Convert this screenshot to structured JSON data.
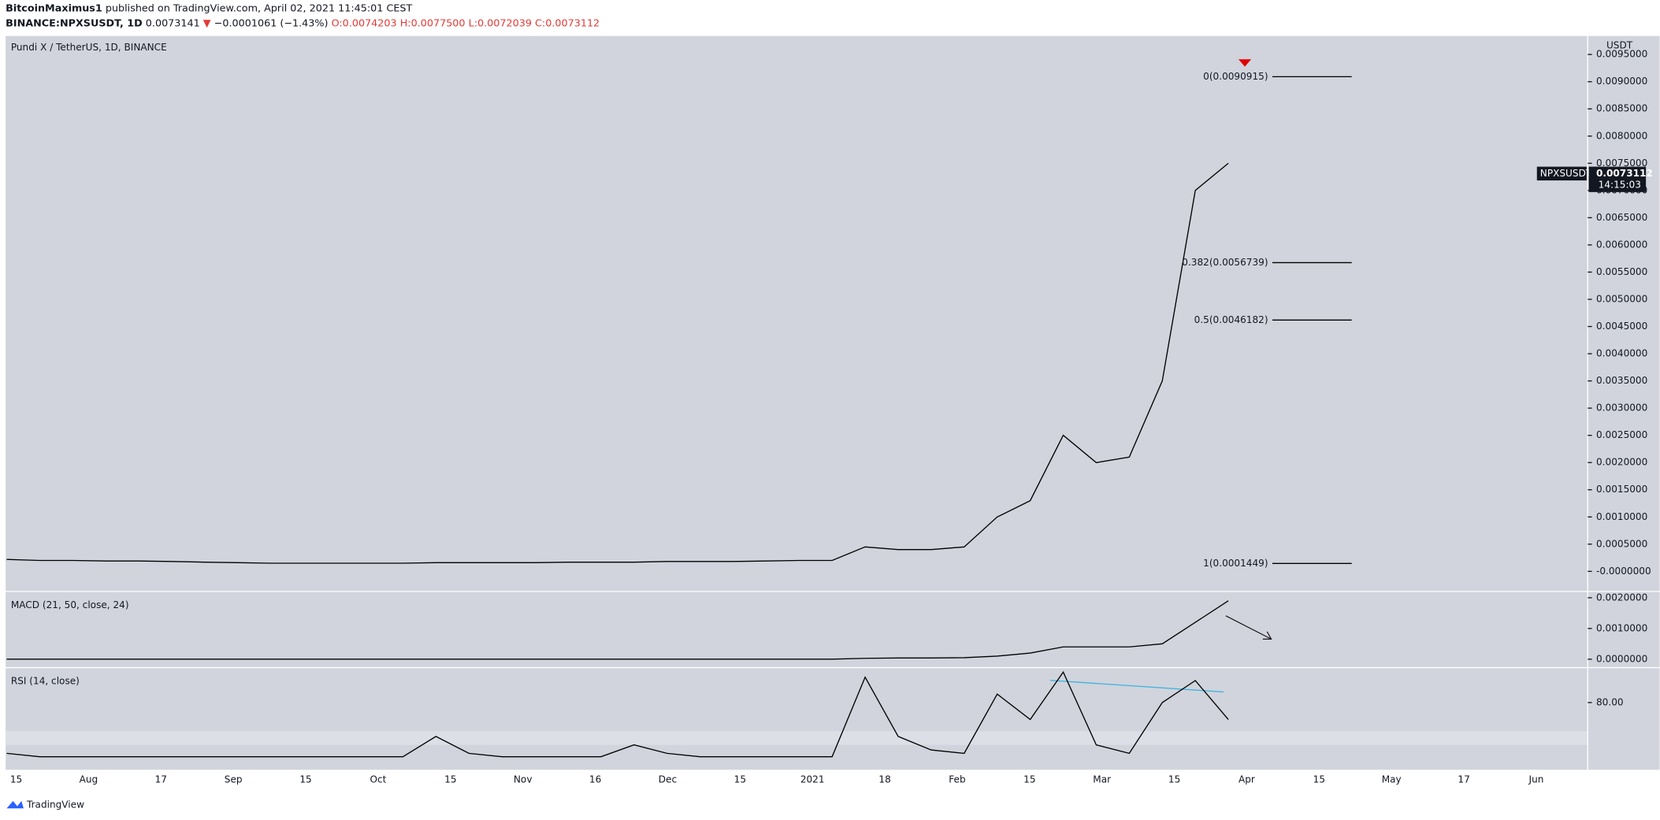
{
  "header": {
    "author": "BitcoinMaximus1",
    "published": "published on TradingView.com, April 02, 2021 11:45:01 CEST",
    "symbol": "BINANCE:NPXSUSDT, 1D",
    "last": "0.0073141",
    "change": "−0.0001061 (−1.43%)",
    "open": "O:0.0074203",
    "high": "H:0.0077500",
    "low": "L:0.0072039",
    "close": "C:0.0073112"
  },
  "footer": "TradingView",
  "chart_data": [
    {
      "type": "line",
      "title": "Pundi X / TetherUS, 1D, BINANCE",
      "axis_unit": "USDT",
      "x": [
        "Jul 13",
        "Jul 20",
        "Jul 27",
        "Aug 3",
        "Aug 10",
        "Aug 17",
        "Aug 24",
        "Aug 31",
        "Sep 7",
        "Sep 14",
        "Sep 21",
        "Sep 28",
        "Oct 5",
        "Oct 12",
        "Oct 19",
        "Oct 26",
        "Nov 2",
        "Nov 9",
        "Nov 16",
        "Nov 23",
        "Nov 30",
        "Dec 7",
        "Dec 14",
        "Dec 21",
        "Dec 28",
        "Jan 4",
        "Jan 11",
        "Jan 18",
        "Jan 25",
        "Feb 1",
        "Feb 8",
        "Feb 15",
        "Feb 22",
        "Mar 1",
        "Mar 8",
        "Mar 15",
        "Mar 22",
        "Mar 29"
      ],
      "series": [
        {
          "name": "NPXSUSDT",
          "color": "#000000",
          "values": [
            0.00022,
            0.0002,
            0.0002,
            0.00019,
            0.00019,
            0.00018,
            0.00017,
            0.00016,
            0.00015,
            0.00015,
            0.00015,
            0.00015,
            0.00015,
            0.00016,
            0.00016,
            0.00016,
            0.00016,
            0.00017,
            0.00017,
            0.00017,
            0.00018,
            0.00018,
            0.00018,
            0.00019,
            0.0002,
            0.0002,
            0.00045,
            0.0004,
            0.0004,
            0.00045,
            0.001,
            0.0013,
            0.0025,
            0.002,
            0.0021,
            0.0035,
            0.007,
            0.0075
          ]
        }
      ],
      "xtick_labels": [
        "15",
        "Aug",
        "17",
        "Sep",
        "15",
        "Oct",
        "15",
        "Nov",
        "16",
        "Dec",
        "15",
        "2021",
        "18",
        "Feb",
        "15",
        "Mar",
        "15",
        "Apr",
        "15",
        "May",
        "17",
        "Jun"
      ],
      "ylim": [
        -0.00035,
        0.00984
      ],
      "yticks": [
        {
          "value": 0,
          "label": "-0.0000000"
        },
        {
          "value": 0.0005,
          "label": "0.0005000"
        },
        {
          "value": 0.001,
          "label": "0.0010000"
        },
        {
          "value": 0.0015,
          "label": "0.0015000"
        },
        {
          "value": 0.002,
          "label": "0.0020000"
        },
        {
          "value": 0.0025,
          "label": "0.0025000"
        },
        {
          "value": 0.003,
          "label": "0.0030000"
        },
        {
          "value": 0.0035,
          "label": "0.0035000"
        },
        {
          "value": 0.004,
          "label": "0.0040000"
        },
        {
          "value": 0.0045,
          "label": "0.0045000"
        },
        {
          "value": 0.005,
          "label": "0.0050000"
        },
        {
          "value": 0.0055,
          "label": "0.0055000"
        },
        {
          "value": 0.006,
          "label": "0.0060000"
        },
        {
          "value": 0.0065,
          "label": "0.0065000"
        },
        {
          "value": 0.007,
          "label": "0.0070000"
        },
        {
          "value": 0.0075,
          "label": "0.0075000"
        },
        {
          "value": 0.008,
          "label": "0.0080000"
        },
        {
          "value": 0.0085,
          "label": "0.0085000"
        },
        {
          "value": 0.009,
          "label": "0.0090000"
        },
        {
          "value": 0.0095,
          "label": "0.0095000"
        }
      ],
      "fib_levels": [
        {
          "value": 0.0090915,
          "label": "0(0.0090915)"
        },
        {
          "value": 0.0056739,
          "label": "0.382(0.0056739)"
        },
        {
          "value": 0.0046182,
          "label": "0.5(0.0046182)"
        },
        {
          "value": 0.0001449,
          "label": "1(0.0001449)"
        }
      ],
      "last_price": 0.0073112,
      "countdown": "14:15:03",
      "grid": false
    },
    {
      "type": "line",
      "title": "MACD (21, 50, close, 24)",
      "series": [
        {
          "name": "MACD",
          "color": "#000000",
          "values": [
            0,
            0,
            0,
            0,
            0,
            0,
            0,
            0,
            0,
            0,
            0,
            0,
            0,
            0,
            0,
            0,
            0,
            0,
            0,
            0,
            0,
            0,
            0,
            0,
            0,
            0,
            3e-05,
            4e-05,
            4e-05,
            5e-05,
            0.0001,
            0.0002,
            0.0004,
            0.0004,
            0.0004,
            0.0005,
            0.0012,
            0.0019
          ]
        }
      ],
      "ylim": [
        -0.00024,
        0.00217
      ],
      "yticks": [
        {
          "value": 0,
          "label": "0.0000000"
        },
        {
          "value": 0.001,
          "label": "0.0010000"
        },
        {
          "value": 0.002,
          "label": "0.0020000"
        }
      ]
    },
    {
      "type": "line",
      "title": "RSI (14, close)",
      "series": [
        {
          "name": "RSI",
          "color": "#000000",
          "values": [
            50,
            48,
            48,
            48,
            48,
            48,
            48,
            48,
            48,
            48,
            48,
            48,
            48,
            60,
            50,
            48,
            48,
            48,
            48,
            55,
            50,
            48,
            48,
            48,
            48,
            48,
            95,
            60,
            52,
            50,
            85,
            70,
            98,
            55,
            50,
            80,
            93,
            70
          ]
        }
      ],
      "ylim": [
        40,
        100
      ],
      "yticks": [
        {
          "value": 80,
          "label": "80.00"
        }
      ]
    }
  ]
}
